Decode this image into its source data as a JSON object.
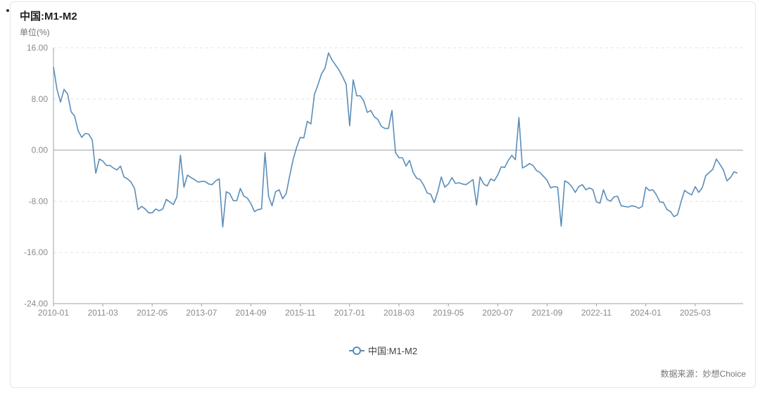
{
  "chart_data": {
    "type": "line",
    "title": "中国:M1-M2",
    "unit_label": "单位(%)",
    "source": "数据来源：妙想Choice",
    "ylim": [
      -24,
      16
    ],
    "y_ticks": [
      16,
      8,
      0,
      -8,
      -16,
      -24
    ],
    "y_tick_labels": [
      "16.00",
      "8.00",
      "0.00",
      "-8.00",
      "-16.00",
      "-24.00"
    ],
    "x_tick_labels": [
      "2010-01",
      "2011-03",
      "2012-05",
      "2013-07",
      "2014-09",
      "2015-11",
      "2017-01",
      "2018-03",
      "2019-05",
      "2020-07",
      "2021-09",
      "2022-11",
      "2024-01",
      "2025-03"
    ],
    "legend_position": "bottom-center",
    "grid": "horizontal dashed",
    "series": [
      {
        "name": "中国:M1-M2",
        "color": "#5b8db8",
        "values": [
          13.0,
          9.5,
          7.5,
          9.5,
          8.8,
          6.0,
          5.3,
          3.0,
          2.0,
          2.6,
          2.5,
          1.6,
          -3.6,
          -1.4,
          -1.7,
          -2.4,
          -2.4,
          -2.8,
          -3.1,
          -2.5,
          -4.2,
          -4.5,
          -5.0,
          -6.0,
          -9.3,
          -8.8,
          -9.2,
          -9.8,
          -9.8,
          -9.2,
          -9.5,
          -9.2,
          -7.7,
          -8.1,
          -8.5,
          -7.3,
          -0.8,
          -5.8,
          -3.9,
          -4.3,
          -4.6,
          -5.0,
          -4.9,
          -4.9,
          -5.3,
          -5.4,
          -4.8,
          -4.5,
          -12.0,
          -6.5,
          -6.8,
          -7.9,
          -7.9,
          -6.0,
          -7.2,
          -7.5,
          -8.4,
          -9.6,
          -9.3,
          -9.2,
          -0.4,
          -7.2,
          -8.7,
          -6.5,
          -6.2,
          -7.6,
          -6.8,
          -4.0,
          -1.4,
          0.5,
          2.0,
          1.9,
          4.5,
          4.1,
          8.7,
          10.2,
          11.9,
          12.8,
          15.2,
          14.1,
          13.3,
          12.5,
          11.5,
          10.3,
          3.8,
          11.0,
          8.5,
          8.5,
          7.7,
          5.9,
          6.2,
          5.2,
          4.8,
          3.7,
          3.4,
          3.4,
          6.2,
          -0.4,
          -1.2,
          -1.2,
          -2.5,
          -1.6,
          -3.5,
          -4.4,
          -4.6,
          -5.5,
          -6.7,
          -6.9,
          -8.2,
          -6.5,
          -4.2,
          -5.8,
          -5.3,
          -4.3,
          -5.2,
          -5.1,
          -5.3,
          -5.4,
          -5.0,
          -4.6,
          -8.6,
          -4.2,
          -5.3,
          -5.6,
          -4.5,
          -4.8,
          -3.9,
          -2.6,
          -2.7,
          -1.6,
          -0.8,
          -1.5,
          5.1,
          -2.8,
          -2.5,
          -2.1,
          -2.4,
          -3.2,
          -3.5,
          -4.1,
          -4.7,
          -5.9,
          -5.7,
          -5.8,
          -11.9,
          -4.8,
          -5.1,
          -5.7,
          -6.6,
          -5.7,
          -5.4,
          -6.2,
          -5.9,
          -6.2,
          -8.1,
          -8.3,
          -6.2,
          -7.7,
          -8.0,
          -7.3,
          -7.2,
          -8.7,
          -8.8,
          -8.9,
          -8.7,
          -8.8,
          -9.1,
          -8.8,
          -5.8,
          -6.3,
          -6.2,
          -7.0,
          -8.1,
          -8.2,
          -9.3,
          -9.6,
          -10.4,
          -10.1,
          -8.1,
          -6.3,
          -6.7,
          -7.0,
          -5.7,
          -6.6,
          -5.9,
          -4.0,
          -3.5,
          -3.0,
          -1.4,
          -2.2,
          -3.1,
          -4.8,
          -4.3,
          -3.4,
          -3.6
        ]
      }
    ]
  }
}
